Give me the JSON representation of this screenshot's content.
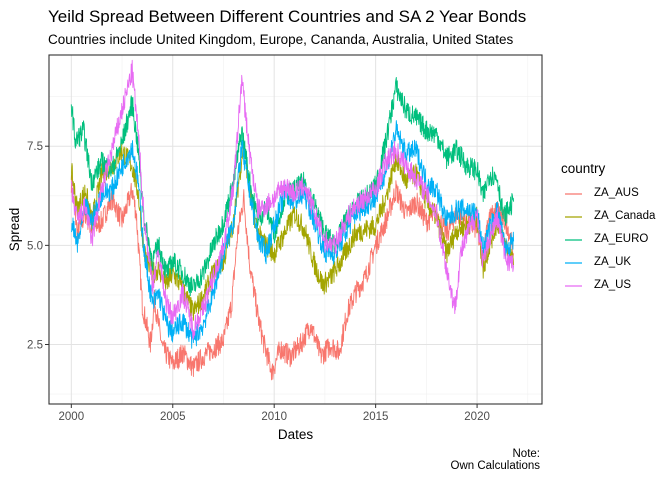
{
  "title": "Yeild Spread Between Different Countries and SA 2 Year Bonds",
  "subtitle": "Countries include United Kingdom, Europe, Cananda, Australia, United States",
  "caption_line1": "Note:",
  "caption_line2": "Own Calculations",
  "chart_data": {
    "type": "line",
    "xlabel": "Dates",
    "ylabel": "Spread",
    "xlim": [
      1998.9,
      2023.2
    ],
    "ylim": [
      1.0,
      9.8
    ],
    "x_ticks": [
      2000,
      2005,
      2010,
      2015,
      2020
    ],
    "x_tick_labels": [
      "2000",
      "2005",
      "2010",
      "2015",
      "2020"
    ],
    "y_ticks": [
      2.5,
      5.0,
      7.5
    ],
    "y_tick_labels": [
      "2.5",
      "5.0",
      "7.5"
    ],
    "grid": true,
    "legend": {
      "title": "country",
      "position": "right"
    },
    "series": [
      {
        "name": "ZA_AUS",
        "color": "#F8766D",
        "points": [
          [
            2000.0,
            6.6
          ],
          [
            2000.3,
            5.3
          ],
          [
            2000.7,
            5.8
          ],
          [
            2001.0,
            5.4
          ],
          [
            2001.5,
            5.6
          ],
          [
            2002.0,
            6.2
          ],
          [
            2002.5,
            5.6
          ],
          [
            2003.0,
            6.4
          ],
          [
            2003.2,
            5.8
          ],
          [
            2003.5,
            3.5
          ],
          [
            2003.9,
            2.5
          ],
          [
            2004.1,
            3.6
          ],
          [
            2004.5,
            2.4
          ],
          [
            2005.0,
            2.0
          ],
          [
            2005.5,
            2.3
          ],
          [
            2006.0,
            1.9
          ],
          [
            2006.5,
            2.2
          ],
          [
            2007.0,
            2.4
          ],
          [
            2007.5,
            2.6
          ],
          [
            2007.9,
            3.5
          ],
          [
            2008.2,
            5.3
          ],
          [
            2008.5,
            6.2
          ],
          [
            2008.8,
            4.5
          ],
          [
            2009.2,
            3.2
          ],
          [
            2009.5,
            2.5
          ],
          [
            2009.9,
            1.8
          ],
          [
            2010.3,
            2.4
          ],
          [
            2010.8,
            2.2
          ],
          [
            2011.3,
            2.5
          ],
          [
            2011.8,
            3.0
          ],
          [
            2012.3,
            2.2
          ],
          [
            2012.8,
            2.5
          ],
          [
            2013.2,
            2.3
          ],
          [
            2013.6,
            3.3
          ],
          [
            2014.0,
            3.8
          ],
          [
            2014.5,
            4.2
          ],
          [
            2015.0,
            5.0
          ],
          [
            2015.5,
            5.6
          ],
          [
            2016.0,
            6.4
          ],
          [
            2016.5,
            5.8
          ],
          [
            2017.0,
            6.1
          ],
          [
            2017.5,
            5.6
          ],
          [
            2018.0,
            5.8
          ],
          [
            2018.5,
            5.3
          ],
          [
            2019.0,
            5.8
          ],
          [
            2019.5,
            5.6
          ],
          [
            2020.0,
            5.4
          ],
          [
            2020.3,
            4.6
          ],
          [
            2020.5,
            5.6
          ],
          [
            2021.0,
            5.9
          ],
          [
            2021.5,
            5.5
          ],
          [
            2021.8,
            4.8
          ]
        ]
      },
      {
        "name": "ZA_Canada",
        "color": "#A3A500",
        "points": [
          [
            2000.0,
            6.9
          ],
          [
            2000.3,
            5.9
          ],
          [
            2000.7,
            6.4
          ],
          [
            2001.0,
            5.6
          ],
          [
            2001.5,
            6.8
          ],
          [
            2002.0,
            7.0
          ],
          [
            2002.5,
            7.4
          ],
          [
            2003.0,
            7.0
          ],
          [
            2003.3,
            6.3
          ],
          [
            2003.6,
            4.8
          ],
          [
            2004.0,
            4.3
          ],
          [
            2004.3,
            4.4
          ],
          [
            2004.7,
            4.0
          ],
          [
            2005.0,
            4.3
          ],
          [
            2005.5,
            3.9
          ],
          [
            2006.0,
            3.3
          ],
          [
            2006.5,
            3.7
          ],
          [
            2007.0,
            4.3
          ],
          [
            2007.5,
            4.6
          ],
          [
            2008.0,
            5.6
          ],
          [
            2008.5,
            7.6
          ],
          [
            2008.8,
            6.3
          ],
          [
            2009.2,
            5.3
          ],
          [
            2009.6,
            5.0
          ],
          [
            2010.0,
            4.8
          ],
          [
            2010.5,
            5.3
          ],
          [
            2011.0,
            5.8
          ],
          [
            2011.5,
            5.4
          ],
          [
            2012.0,
            4.5
          ],
          [
            2012.4,
            4.0
          ],
          [
            2012.8,
            4.2
          ],
          [
            2013.3,
            4.6
          ],
          [
            2013.7,
            5.0
          ],
          [
            2014.0,
            5.3
          ],
          [
            2014.5,
            5.4
          ],
          [
            2015.0,
            5.5
          ],
          [
            2015.5,
            6.2
          ],
          [
            2016.0,
            7.2
          ],
          [
            2016.5,
            6.6
          ],
          [
            2017.0,
            6.8
          ],
          [
            2017.5,
            6.1
          ],
          [
            2018.0,
            5.7
          ],
          [
            2018.5,
            4.8
          ],
          [
            2019.0,
            5.4
          ],
          [
            2019.5,
            5.5
          ],
          [
            2020.0,
            5.7
          ],
          [
            2020.3,
            4.4
          ],
          [
            2020.6,
            5.0
          ],
          [
            2021.0,
            5.6
          ],
          [
            2021.5,
            4.9
          ],
          [
            2021.8,
            4.5
          ]
        ]
      },
      {
        "name": "ZA_EURO",
        "color": "#00BF7D",
        "points": [
          [
            2000.0,
            8.6
          ],
          [
            2000.2,
            7.6
          ],
          [
            2000.6,
            7.9
          ],
          [
            2001.0,
            6.6
          ],
          [
            2001.5,
            7.1
          ],
          [
            2002.0,
            6.9
          ],
          [
            2002.5,
            7.6
          ],
          [
            2003.0,
            8.6
          ],
          [
            2003.3,
            7.4
          ],
          [
            2003.6,
            5.6
          ],
          [
            2004.0,
            4.6
          ],
          [
            2004.3,
            5.0
          ],
          [
            2004.7,
            4.3
          ],
          [
            2005.0,
            4.6
          ],
          [
            2005.5,
            4.3
          ],
          [
            2006.0,
            3.9
          ],
          [
            2006.5,
            4.3
          ],
          [
            2007.0,
            5.0
          ],
          [
            2007.5,
            5.6
          ],
          [
            2008.0,
            6.6
          ],
          [
            2008.4,
            7.9
          ],
          [
            2008.8,
            6.6
          ],
          [
            2009.2,
            5.6
          ],
          [
            2009.6,
            6.0
          ],
          [
            2010.0,
            5.3
          ],
          [
            2010.5,
            6.2
          ],
          [
            2011.0,
            6.4
          ],
          [
            2011.5,
            6.6
          ],
          [
            2012.0,
            6.0
          ],
          [
            2012.5,
            5.3
          ],
          [
            2013.0,
            5.0
          ],
          [
            2013.5,
            5.6
          ],
          [
            2014.0,
            6.0
          ],
          [
            2014.5,
            6.2
          ],
          [
            2015.0,
            6.5
          ],
          [
            2015.5,
            7.6
          ],
          [
            2016.0,
            9.0
          ],
          [
            2016.5,
            8.4
          ],
          [
            2017.0,
            8.2
          ],
          [
            2017.5,
            7.9
          ],
          [
            2018.0,
            7.8
          ],
          [
            2018.5,
            7.2
          ],
          [
            2019.0,
            7.4
          ],
          [
            2019.5,
            7.0
          ],
          [
            2020.0,
            6.9
          ],
          [
            2020.3,
            6.2
          ],
          [
            2020.6,
            6.8
          ],
          [
            2021.0,
            6.7
          ],
          [
            2021.3,
            5.7
          ],
          [
            2021.8,
            6.1
          ]
        ]
      },
      {
        "name": "ZA_UK",
        "color": "#00B0F6",
        "points": [
          [
            2000.0,
            5.6
          ],
          [
            2000.3,
            5.0
          ],
          [
            2000.7,
            6.0
          ],
          [
            2001.0,
            5.6
          ],
          [
            2001.5,
            6.3
          ],
          [
            2002.0,
            6.4
          ],
          [
            2002.5,
            7.0
          ],
          [
            2003.0,
            7.5
          ],
          [
            2003.3,
            6.6
          ],
          [
            2003.6,
            4.8
          ],
          [
            2004.0,
            3.5
          ],
          [
            2004.3,
            3.8
          ],
          [
            2004.7,
            3.0
          ],
          [
            2005.0,
            2.8
          ],
          [
            2005.5,
            3.1
          ],
          [
            2006.0,
            2.6
          ],
          [
            2006.5,
            3.0
          ],
          [
            2007.0,
            3.8
          ],
          [
            2007.5,
            4.8
          ],
          [
            2008.0,
            5.6
          ],
          [
            2008.4,
            7.5
          ],
          [
            2008.8,
            6.3
          ],
          [
            2009.2,
            5.2
          ],
          [
            2009.6,
            4.8
          ],
          [
            2010.0,
            5.5
          ],
          [
            2010.5,
            6.3
          ],
          [
            2011.0,
            6.1
          ],
          [
            2011.5,
            6.3
          ],
          [
            2012.0,
            5.6
          ],
          [
            2012.5,
            4.8
          ],
          [
            2013.0,
            4.8
          ],
          [
            2013.5,
            5.3
          ],
          [
            2014.0,
            5.8
          ],
          [
            2014.5,
            6.0
          ],
          [
            2015.0,
            6.2
          ],
          [
            2015.5,
            6.9
          ],
          [
            2016.0,
            7.9
          ],
          [
            2016.5,
            7.3
          ],
          [
            2017.0,
            7.4
          ],
          [
            2017.5,
            6.6
          ],
          [
            2018.0,
            6.4
          ],
          [
            2018.5,
            5.6
          ],
          [
            2019.0,
            5.9
          ],
          [
            2019.5,
            5.9
          ],
          [
            2020.0,
            5.8
          ],
          [
            2020.3,
            4.9
          ],
          [
            2020.6,
            5.4
          ],
          [
            2021.0,
            5.9
          ],
          [
            2021.4,
            4.9
          ],
          [
            2021.8,
            5.1
          ]
        ]
      },
      {
        "name": "ZA_US",
        "color": "#E76BF3",
        "points": [
          [
            2000.0,
            6.4
          ],
          [
            2000.3,
            5.6
          ],
          [
            2000.7,
            6.0
          ],
          [
            2001.0,
            5.1
          ],
          [
            2001.5,
            6.4
          ],
          [
            2002.0,
            7.4
          ],
          [
            2002.5,
            8.4
          ],
          [
            2003.0,
            9.4
          ],
          [
            2003.3,
            7.8
          ],
          [
            2003.6,
            5.6
          ],
          [
            2004.0,
            4.0
          ],
          [
            2004.3,
            4.8
          ],
          [
            2004.7,
            3.5
          ],
          [
            2005.0,
            3.2
          ],
          [
            2005.5,
            3.8
          ],
          [
            2006.0,
            2.9
          ],
          [
            2006.5,
            3.4
          ],
          [
            2007.0,
            4.2
          ],
          [
            2007.5,
            5.0
          ],
          [
            2008.0,
            6.5
          ],
          [
            2008.4,
            9.2
          ],
          [
            2008.8,
            7.3
          ],
          [
            2009.2,
            5.9
          ],
          [
            2009.6,
            6.0
          ],
          [
            2010.0,
            6.2
          ],
          [
            2010.5,
            6.5
          ],
          [
            2011.0,
            6.3
          ],
          [
            2011.5,
            6.5
          ],
          [
            2012.0,
            5.8
          ],
          [
            2012.5,
            5.1
          ],
          [
            2013.0,
            5.0
          ],
          [
            2013.5,
            5.6
          ],
          [
            2014.0,
            6.0
          ],
          [
            2014.5,
            6.2
          ],
          [
            2015.0,
            6.4
          ],
          [
            2015.5,
            7.1
          ],
          [
            2016.0,
            7.4
          ],
          [
            2016.5,
            7.0
          ],
          [
            2017.0,
            6.7
          ],
          [
            2017.5,
            6.3
          ],
          [
            2018.0,
            5.8
          ],
          [
            2018.5,
            4.4
          ],
          [
            2018.9,
            3.4
          ],
          [
            2019.2,
            4.8
          ],
          [
            2019.6,
            5.4
          ],
          [
            2020.0,
            5.8
          ],
          [
            2020.3,
            4.5
          ],
          [
            2020.6,
            5.2
          ],
          [
            2021.0,
            5.7
          ],
          [
            2021.4,
            4.7
          ],
          [
            2021.8,
            4.5
          ]
        ]
      }
    ]
  }
}
